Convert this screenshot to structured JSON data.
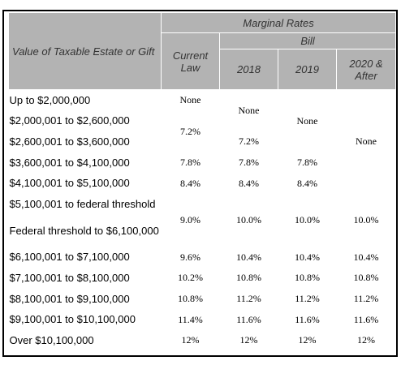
{
  "header": {
    "row_label": "Value of Taxable Estate or Gift",
    "group": "Marginal Rates",
    "subgroup": "Bill",
    "current_law": "Current Law",
    "years": [
      "2018",
      "2019",
      "2020 & After"
    ]
  },
  "table": {
    "row_labels": [
      "Up to $2,000,000",
      "$2,000,001 to $2,600,000",
      "$2,600,001 to $3,600,000",
      "$3,600,001 to $4,100,000",
      "$4,100,001 to $5,100,000",
      "$5,100,001 to federal threshold",
      "Federal threshold to $6,100,000",
      "$6,100,001 to $7,100,000",
      "$7,100,001 to $8,100,000",
      "$8,100,001 to $9,100,000",
      "$9,100,001 to $10,100,000",
      "Over $10,100,000"
    ],
    "current_law": [
      "None",
      "7.2%",
      "7.8%",
      "8.4%",
      "9.0%",
      "9.6%",
      "10.2%",
      "10.8%",
      "11.4%",
      "12%"
    ],
    "bill_2018": [
      "None",
      "7.2%",
      "7.8%",
      "8.4%",
      "10.0%",
      "10.4%",
      "10.8%",
      "11.2%",
      "11.6%",
      "12%"
    ],
    "bill_2019": [
      "None",
      "7.8%",
      "8.4%",
      "10.0%",
      "10.4%",
      "10.8%",
      "11.2%",
      "11.6%",
      "12%"
    ],
    "bill_2020_after": [
      "None",
      "10.0%",
      "10.4%",
      "10.8%",
      "11.2%",
      "11.6%",
      "12%"
    ]
  }
}
